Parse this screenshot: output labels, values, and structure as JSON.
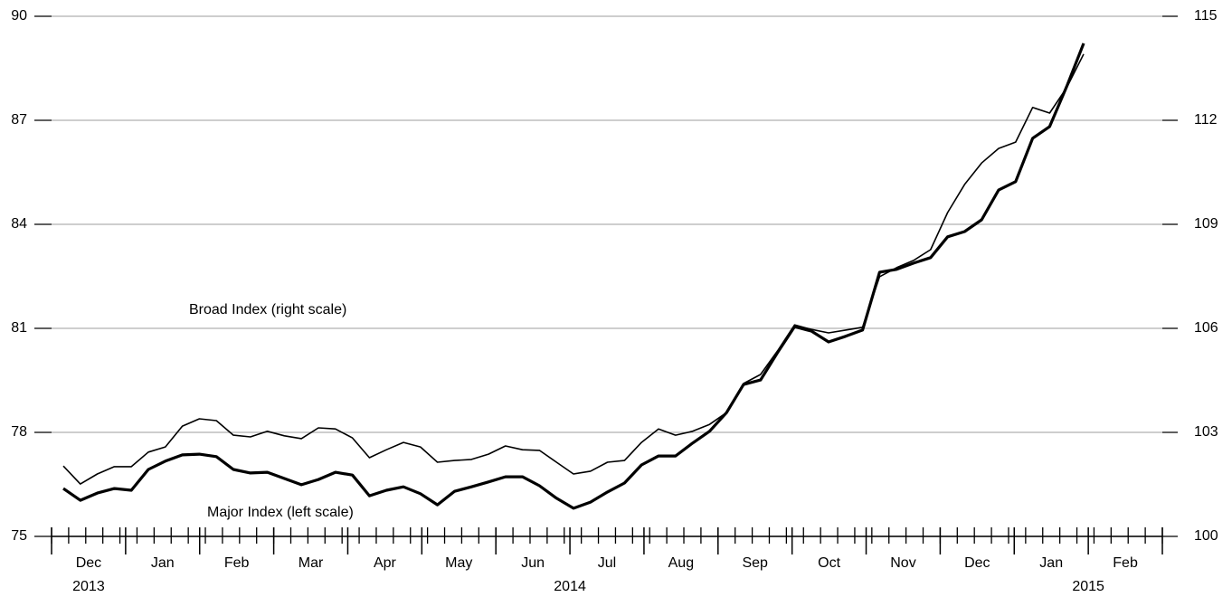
{
  "chart_data": {
    "type": "line",
    "annotations": [
      {
        "text": "Broad Index (right scale)",
        "series": 1
      },
      {
        "text": "Major Index (left scale)",
        "series": 0
      }
    ],
    "year_groups": [
      {
        "label": "2013",
        "months": [
          "Dec"
        ]
      },
      {
        "label": "2014",
        "months": [
          "Jan",
          "Feb",
          "Mar",
          "Apr",
          "May",
          "Jun",
          "Jul",
          "Aug",
          "Sep",
          "Oct",
          "Nov",
          "Dec"
        ]
      },
      {
        "label": "2015",
        "months": [
          "Jan",
          "Feb"
        ]
      }
    ],
    "series": [
      {
        "name": "Major Index",
        "color": "#000000",
        "line_width": 3.2,
        "values": [
          76.38,
          76.04,
          76.25,
          76.38,
          76.33,
          76.93,
          77.17,
          77.35,
          77.37,
          77.3,
          76.93,
          76.83,
          76.85,
          76.67,
          76.49,
          76.64,
          76.85,
          76.77,
          76.17,
          76.33,
          76.43,
          76.23,
          75.91,
          76.3,
          76.43,
          76.57,
          76.72,
          76.72,
          76.46,
          76.1,
          75.81,
          75.99,
          76.28,
          76.54,
          77.06,
          77.32,
          77.32,
          77.69,
          78.03,
          78.57,
          79.38,
          79.51,
          80.3,
          81.05,
          80.92,
          80.61,
          80.77,
          80.95,
          82.62,
          82.7,
          82.88,
          83.04,
          83.64,
          83.79,
          84.13,
          84.99,
          85.23,
          86.48,
          86.82,
          87.97,
          89.22
        ]
      },
      {
        "name": "Broad Index",
        "color": "#000000",
        "line_width": 1.6,
        "axis": "y2",
        "values": [
          102.03,
          101.51,
          101.8,
          102.01,
          102.01,
          102.43,
          102.58,
          103.18,
          103.39,
          103.34,
          102.92,
          102.87,
          103.03,
          102.9,
          102.82,
          103.13,
          103.1,
          102.84,
          102.27,
          102.5,
          102.71,
          102.58,
          102.14,
          102.19,
          102.22,
          102.37,
          102.61,
          102.5,
          102.48,
          102.14,
          101.8,
          101.88,
          102.14,
          102.19,
          102.71,
          103.1,
          102.92,
          103.03,
          103.23,
          103.57,
          104.41,
          104.67,
          105.35,
          106.1,
          105.97,
          105.87,
          105.95,
          106.03,
          107.49,
          107.75,
          107.96,
          108.27,
          109.34,
          110.15,
          110.77,
          111.19,
          111.37,
          112.37,
          112.21,
          112.94,
          113.91
        ]
      }
    ],
    "ylim": [
      75,
      90
    ],
    "yticks": [
      75,
      78,
      81,
      84,
      87,
      90
    ],
    "y2lim": [
      100,
      115
    ],
    "y2ticks": [
      100,
      103,
      106,
      109,
      112,
      115
    ],
    "grid": true
  }
}
